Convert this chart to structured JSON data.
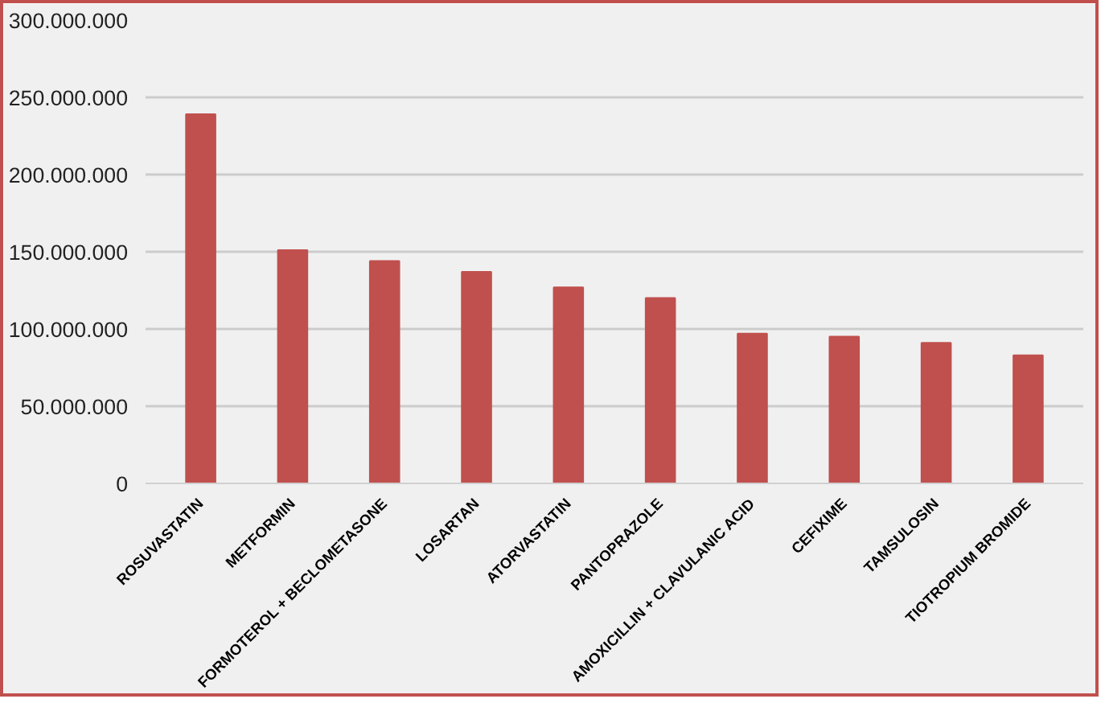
{
  "chart_data": {
    "type": "bar",
    "categories": [
      "ROSUVASTATIN",
      "METFORMIN",
      "FORMOTEROL + BECLOMETASONE",
      "LOSARTAN",
      "ATORVASTATIN",
      "PANTOPRAZOLE",
      "AMOXICILLIN + CLAVULANIC ACID",
      "CEFIXIME",
      "TAMSULOSIN",
      "TIOTROPIUM BROMIDE"
    ],
    "values": [
      239000000,
      151000000,
      144000000,
      137000000,
      127000000,
      120000000,
      97000000,
      95000000,
      91000000,
      83000000
    ],
    "color": "#c0504d",
    "ylim": [
      0,
      300000000
    ],
    "yticks": [
      {
        "value": 0,
        "label": "0"
      },
      {
        "value": 50000000,
        "label": "50.000.000"
      },
      {
        "value": 100000000,
        "label": "100.000.000"
      },
      {
        "value": 150000000,
        "label": "150.000.000"
      },
      {
        "value": 200000000,
        "label": "200.000.000"
      },
      {
        "value": 250000000,
        "label": "250.000.000"
      },
      {
        "value": 300000000,
        "label": "300.000.000"
      }
    ],
    "grid": "y"
  }
}
